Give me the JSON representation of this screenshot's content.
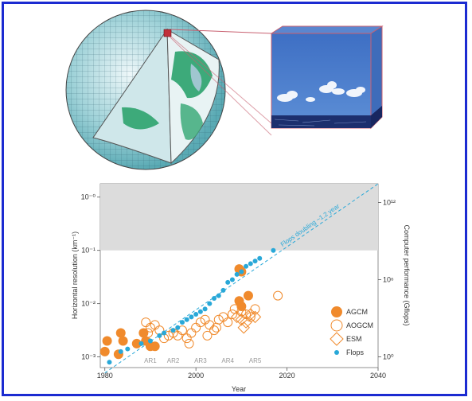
{
  "figure": {
    "illustration": {
      "description_icon": "globe-grid-with-atmospheric-column-icon"
    }
  },
  "chart_data": {
    "type": "scatter",
    "title": "",
    "xlabel": "Year",
    "ylabel_left": "Horizontal resolution (km⁻¹)",
    "ylabel_right": "Computer performance (Gflops)",
    "xlim": [
      1979,
      2040
    ],
    "ylim_log10": [
      -3.2,
      0.25
    ],
    "y_scale": "log",
    "x_ticks": [
      "1980",
      "2000",
      "2020",
      "2040"
    ],
    "y_ticks_left": [
      "10⁻³",
      "10⁻²",
      "10⁻¹",
      "10⁻⁰"
    ],
    "y_ticks_right": [
      "10⁰",
      "10⁶",
      "10¹²"
    ],
    "shaded_region_ylog10": [
      -1,
      0.25
    ],
    "trend_label": "Flops doubling ~1.2 year",
    "trend_line": {
      "x": [
        1980,
        2040
      ],
      "ylog10": [
        -3.3,
        0.25
      ]
    },
    "ar_labels": [
      {
        "label": "AR1",
        "x": 1990
      },
      {
        "label": "AR2",
        "x": 1995
      },
      {
        "label": "AR3",
        "x": 2001
      },
      {
        "label": "AR4",
        "x": 2007
      },
      {
        "label": "AR5",
        "x": 2013
      }
    ],
    "legend": {
      "position": "bottom-right",
      "entries": [
        "AGCM",
        "AOGCM",
        "ESM",
        "Flops"
      ]
    },
    "colors": {
      "orange": "#f08a2c",
      "blue": "#29a8d8",
      "shade": "#dcdcdc"
    },
    "series": [
      {
        "name": "AGCM",
        "marker": "filled-circle",
        "points": [
          [
            1980,
            -2.9
          ],
          [
            1980.5,
            -2.7
          ],
          [
            1983.5,
            -2.55
          ],
          [
            1984,
            -2.7
          ],
          [
            1983,
            -2.95
          ],
          [
            1987,
            -2.75
          ],
          [
            1988.5,
            -2.55
          ],
          [
            1989,
            -2.7
          ],
          [
            1990,
            -2.8
          ],
          [
            1991,
            -2.8
          ],
          [
            2009.5,
            -1.35
          ],
          [
            2010,
            -1.4
          ],
          [
            2011.5,
            -1.85
          ],
          [
            2009.5,
            -1.95
          ],
          [
            2010,
            -2.05
          ]
        ]
      },
      {
        "name": "AOGCM",
        "marker": "open-circle",
        "points": [
          [
            1989,
            -2.35
          ],
          [
            1990,
            -2.45
          ],
          [
            1989.5,
            -2.55
          ],
          [
            1991,
            -2.4
          ],
          [
            1992,
            -2.5
          ],
          [
            1993,
            -2.65
          ],
          [
            1994,
            -2.6
          ],
          [
            1995,
            -2.55
          ],
          [
            1996,
            -2.6
          ],
          [
            1997,
            -2.5
          ],
          [
            1998,
            -2.65
          ],
          [
            1999,
            -2.55
          ],
          [
            2000,
            -2.45
          ],
          [
            2001,
            -2.35
          ],
          [
            2002,
            -2.3
          ],
          [
            2003,
            -2.4
          ],
          [
            2004,
            -2.5
          ],
          [
            2005,
            -2.3
          ],
          [
            2006,
            -2.25
          ],
          [
            2007,
            -2.35
          ],
          [
            2008,
            -2.2
          ],
          [
            2008.5,
            -2.1
          ],
          [
            2010,
            -2.15
          ],
          [
            2011,
            -2.2
          ],
          [
            2012,
            -2.25
          ],
          [
            2013,
            -2.1
          ],
          [
            2018,
            -1.85
          ],
          [
            1998.5,
            -2.75
          ],
          [
            2002.5,
            -2.6
          ],
          [
            2004.5,
            -2.45
          ]
        ]
      },
      {
        "name": "ESM",
        "marker": "open-diamond",
        "points": [
          [
            2009,
            -2.25
          ],
          [
            2010,
            -2.3
          ],
          [
            2011,
            -2.35
          ],
          [
            2012,
            -2.2
          ],
          [
            2013,
            -2.25
          ],
          [
            2010.5,
            -2.45
          ]
        ]
      },
      {
        "name": "Flops",
        "marker": "small-filled-circle",
        "points": [
          [
            1981,
            -3.1
          ],
          [
            1983.5,
            -2.9
          ],
          [
            1985,
            -2.85
          ],
          [
            1988,
            -2.75
          ],
          [
            1990,
            -2.7
          ],
          [
            1992,
            -2.6
          ],
          [
            1993,
            -2.55
          ],
          [
            1995,
            -2.5
          ],
          [
            1996,
            -2.45
          ],
          [
            1997,
            -2.35
          ],
          [
            1998,
            -2.3
          ],
          [
            1999,
            -2.25
          ],
          [
            2000,
            -2.2
          ],
          [
            2001,
            -2.15
          ],
          [
            2002,
            -2.1
          ],
          [
            2003,
            -2.0
          ],
          [
            2004,
            -1.9
          ],
          [
            2005,
            -1.85
          ],
          [
            2006,
            -1.75
          ],
          [
            2007,
            -1.6
          ],
          [
            2008,
            -1.55
          ],
          [
            2009,
            -1.45
          ],
          [
            2010,
            -1.4
          ],
          [
            2011,
            -1.3
          ],
          [
            2012,
            -1.25
          ],
          [
            2013,
            -1.2
          ],
          [
            2014,
            -1.15
          ],
          [
            2017,
            -1.0
          ]
        ]
      }
    ]
  }
}
